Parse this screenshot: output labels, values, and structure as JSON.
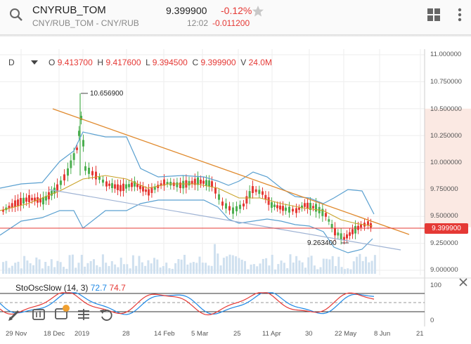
{
  "header": {
    "symbol": "CNYRUB_TOM",
    "price": "9.399900",
    "change_pct": "-0.12%",
    "description": "CNY/RUB_TOM - CNY/RUB",
    "time": "12:02",
    "change_abs": "-0.011200",
    "icons": [
      "search-icon",
      "star-icon",
      "grid-layout-icon",
      "more-vert-icon"
    ]
  },
  "chart": {
    "timeframe": "D",
    "ohlc": {
      "o_label": "O",
      "o": "9.413700",
      "h_label": "H",
      "h": "9.417600",
      "l_label": "L",
      "l": "9.394500",
      "c_label": "C",
      "c": "9.399900",
      "v_label": "V",
      "v": "24.0M"
    },
    "y_ticks": [
      "11.000000",
      "10.750000",
      "10.500000",
      "10.250000",
      "10.000000",
      "9.750000",
      "9.500000",
      "9.250000",
      "9.000000"
    ],
    "last_price_badge": "9.399900",
    "high_annotation": "10.656900",
    "low_annotation": "9.263400",
    "x_ticks": [
      "29 Nov",
      "18 Dec",
      "2019",
      "28",
      "14 Feb",
      "5 Mar",
      "25",
      "11 Apr",
      "30",
      "22 May",
      "8 Jun",
      "21"
    ],
    "colors": {
      "up": "#4caf50",
      "down": "#e53935",
      "bands": "#5aa0d0",
      "ma": "#c9a227",
      "trend_upper": "#e08a2e",
      "trend_lower": "#9fb3d4",
      "volume": "#cfe0ef"
    }
  },
  "indicator": {
    "name": "StoOscSlow",
    "params": "(14, 3)",
    "k": "72.7",
    "d": "74.7",
    "y_ticks": [
      "100",
      "0"
    ]
  },
  "toolbar_icons": [
    "pencil-icon",
    "comparison-icon",
    "indicators-icon",
    "tools-icon",
    "undo-icon"
  ],
  "close_icon": "close-icon"
}
